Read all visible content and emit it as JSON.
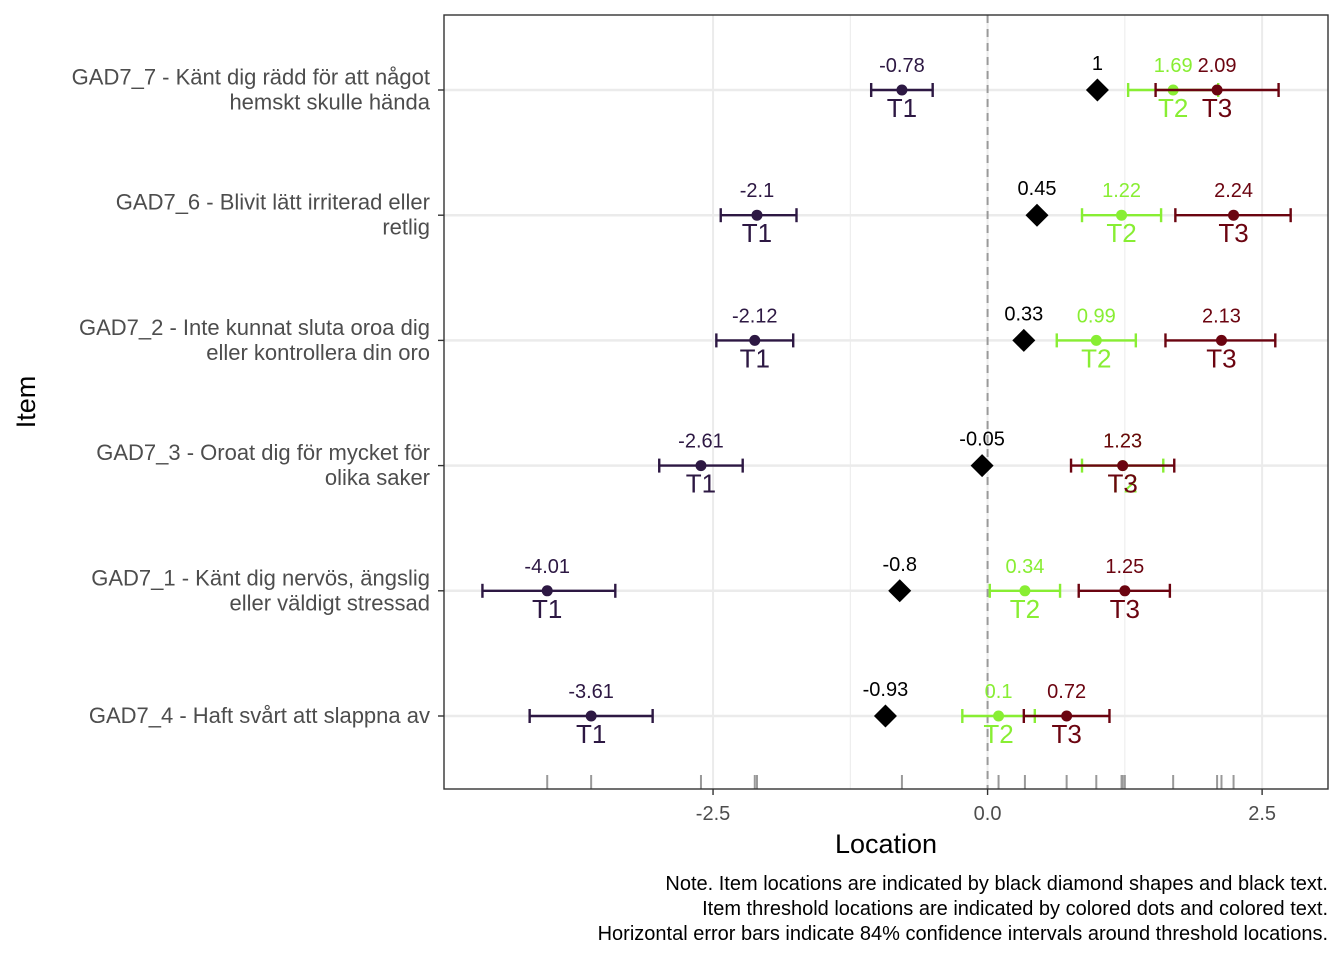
{
  "chart_data": {
    "type": "scatter",
    "ylabel": "Item",
    "xlabel": "Location",
    "xlim": [
      -4.95,
      3.1
    ],
    "x_ticks": [
      -2.5,
      0.0,
      2.5
    ],
    "x_tick_labels": [
      "-2.5",
      "0.0",
      "2.5"
    ],
    "grid": true,
    "reference_line": 0,
    "note_lines": [
      "Note. Item locations are indicated by black diamond shapes and black text.",
      "Item threshold locations are indicated by colored dots and colored text.",
      "Horizontal error bars indicate 84% confidence intervals around threshold locations."
    ],
    "colors": {
      "T1": "#2d1843",
      "T2": "#88ee33",
      "T3": "#6b0410",
      "item": "#000000"
    },
    "items": [
      {
        "label_lines": [
          "GAD7_7 - Känt dig rädd för att något",
          "hemskt skulle hända"
        ],
        "location": 1.0,
        "location_label": "1",
        "thresholds": [
          {
            "name": "T1",
            "value": -0.78,
            "label": "-0.78",
            "ci": [
              -1.06,
              -0.5
            ]
          },
          {
            "name": "T2",
            "value": 1.69,
            "label": "1.69",
            "ci": [
              1.28,
              2.1
            ]
          },
          {
            "name": "T3",
            "value": 2.09,
            "label": "2.09",
            "ci": [
              1.53,
              2.65
            ]
          }
        ]
      },
      {
        "label_lines": [
          "GAD7_6 - Blivit lätt irriterad eller",
          "retlig"
        ],
        "location": 0.45,
        "location_label": "0.45",
        "thresholds": [
          {
            "name": "T1",
            "value": -2.1,
            "label": "-2.1",
            "ci": [
              -2.43,
              -1.74
            ]
          },
          {
            "name": "T2",
            "value": 1.22,
            "label": "1.22",
            "ci": [
              0.86,
              1.58
            ]
          },
          {
            "name": "T3",
            "value": 2.24,
            "label": "2.24",
            "ci": [
              1.71,
              2.76
            ]
          }
        ]
      },
      {
        "label_lines": [
          "GAD7_2 - Inte kunnat sluta oroa dig",
          "eller kontrollera din oro"
        ],
        "location": 0.33,
        "location_label": "0.33",
        "thresholds": [
          {
            "name": "T1",
            "value": -2.12,
            "label": "-2.12",
            "ci": [
              -2.47,
              -1.77
            ]
          },
          {
            "name": "T2",
            "value": 0.99,
            "label": "0.99",
            "ci": [
              0.63,
              1.35
            ]
          },
          {
            "name": "T3",
            "value": 2.13,
            "label": "2.13",
            "ci": [
              1.62,
              2.62
            ]
          }
        ]
      },
      {
        "label_lines": [
          "GAD7_3 - Oroat dig för mycket för",
          "olika saker"
        ],
        "location": -0.05,
        "location_label": "-0.05",
        "thresholds": [
          {
            "name": "T1",
            "value": -2.61,
            "label": "-2.61",
            "ci": [
              -2.99,
              -2.23
            ]
          },
          {
            "name": "T2",
            "value": 1.23,
            "label": "1.23",
            "ci": [
              0.86,
              1.6
            ]
          },
          {
            "name": "T3",
            "value": 1.23,
            "label": "1.23",
            "ci": [
              0.76,
              1.7
            ]
          }
        ]
      },
      {
        "label_lines": [
          "GAD7_1 - Känt dig nervös, ängslig",
          "eller väldigt stressad"
        ],
        "location": -0.8,
        "location_label": "-0.8",
        "thresholds": [
          {
            "name": "T1",
            "value": -4.01,
            "label": "-4.01",
            "ci": [
              -4.6,
              -3.39
            ]
          },
          {
            "name": "T2",
            "value": 0.34,
            "label": "0.34",
            "ci": [
              0.02,
              0.66
            ]
          },
          {
            "name": "T3",
            "value": 1.25,
            "label": "1.25",
            "ci": [
              0.83,
              1.66
            ]
          }
        ]
      },
      {
        "label_lines": [
          "GAD7_4 - Haft svårt att slappna av"
        ],
        "location": -0.93,
        "location_label": "-0.93",
        "thresholds": [
          {
            "name": "T1",
            "value": -3.61,
            "label": "-3.61",
            "ci": [
              -4.17,
              -3.05
            ]
          },
          {
            "name": "T2",
            "value": 0.1,
            "label": "0.1",
            "ci": [
              -0.23,
              0.43
            ]
          },
          {
            "name": "T3",
            "value": 0.72,
            "label": "0.72",
            "ci": [
              0.33,
              1.11
            ]
          }
        ]
      }
    ]
  }
}
